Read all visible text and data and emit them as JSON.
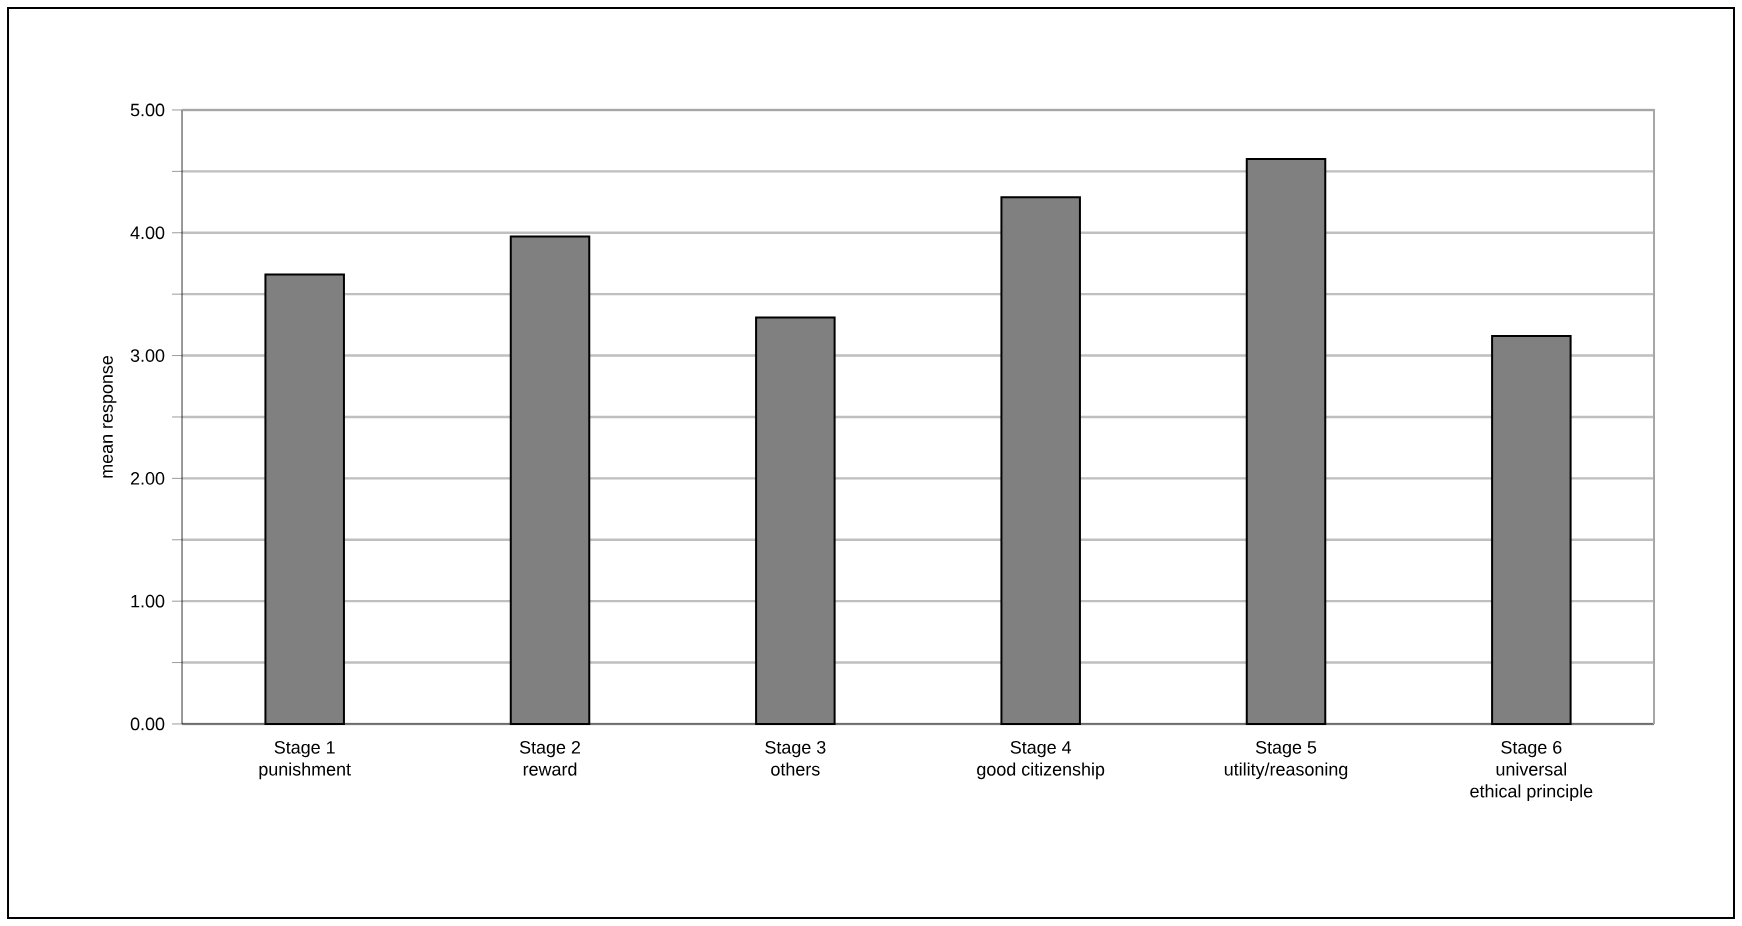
{
  "chart_data": {
    "type": "bar",
    "ylabel": "mean response",
    "categories": [
      "Stage 1\npunishment",
      "Stage 2\nreward",
      "Stage 3\nothers",
      "Stage 4\ngood citizenship",
      "Stage 5\nutility/reasoning",
      "Stage 6\nuniversal\nethical principle"
    ],
    "values": [
      3.66,
      3.97,
      3.31,
      4.29,
      4.6,
      3.16
    ],
    "color": "#808080",
    "ylim": [
      0,
      5
    ],
    "yticks": [
      {
        "value": 0,
        "label": "0.00"
      },
      {
        "value": 0.5,
        "label": null
      },
      {
        "value": 1,
        "label": "1.00"
      },
      {
        "value": 1.5,
        "label": null
      },
      {
        "value": 2,
        "label": "2.00"
      },
      {
        "value": 2.5,
        "label": null
      },
      {
        "value": 3,
        "label": "3.00"
      },
      {
        "value": 3.5,
        "label": null
      },
      {
        "value": 4,
        "label": "4.00"
      },
      {
        "value": 4.5,
        "label": null
      },
      {
        "value": 5,
        "label": "5.00"
      }
    ],
    "grid": "y"
  }
}
